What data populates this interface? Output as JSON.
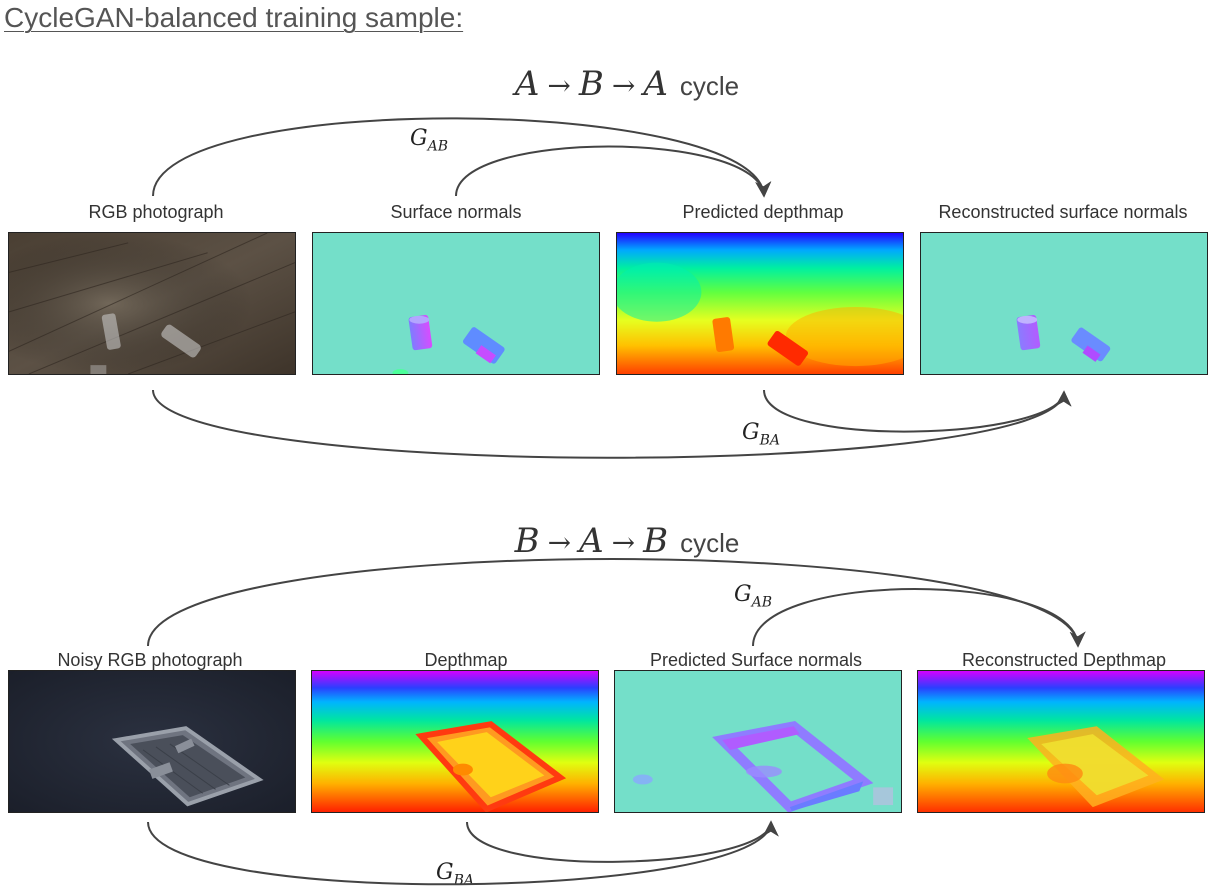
{
  "heading": "CycleGAN-balanced training sample:",
  "cycles": [
    {
      "title_math": [
        "A",
        "B",
        "A"
      ],
      "title_word": "cycle",
      "gen_forward": {
        "main": "G",
        "sub": "AB"
      },
      "gen_backward": {
        "main": "G",
        "sub": "BA"
      },
      "panels": [
        {
          "label": "RGB photograph"
        },
        {
          "label": "Surface normals"
        },
        {
          "label": "Predicted depthmap"
        },
        {
          "label": "Reconstructed surface normals"
        }
      ]
    },
    {
      "title_math": [
        "B",
        "A",
        "B"
      ],
      "title_word": "cycle",
      "gen_forward": {
        "main": "G",
        "sub": "AB"
      },
      "gen_backward": {
        "main": "G",
        "sub": "BA"
      },
      "panels": [
        {
          "label": "Noisy RGB photograph"
        },
        {
          "label": "Depthmap"
        },
        {
          "label": "Predicted Surface normals"
        },
        {
          "label": "Reconstructed Depthmap"
        }
      ]
    }
  ],
  "arrow_symbol": "→",
  "colors": {
    "arrow": "#444444",
    "normals_bg": "#74dfc9"
  }
}
